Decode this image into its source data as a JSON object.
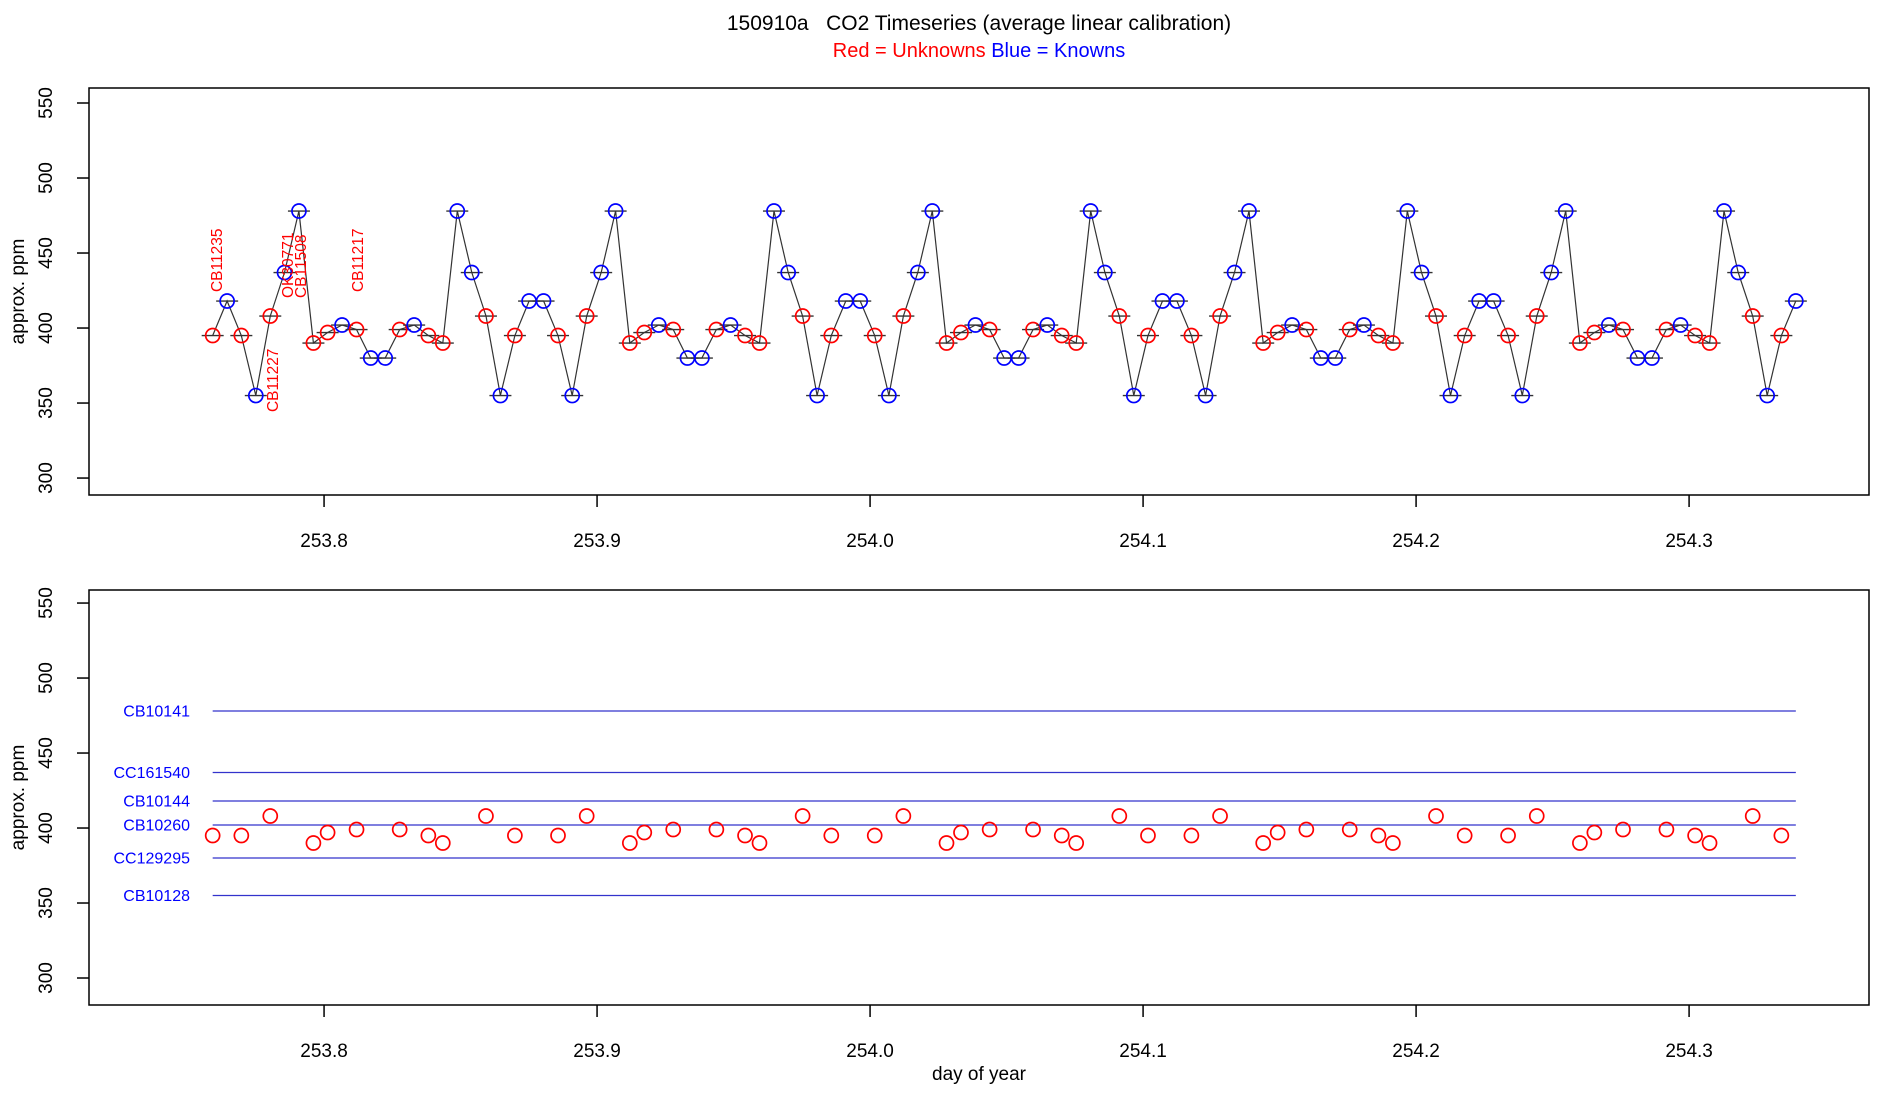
{
  "figure": {
    "title": "150910a   CO2 Timeseries (average linear calibration)",
    "subtitle_red": "Red = Unknowns",
    "subtitle_blue": "Blue = Knowns"
  },
  "colors": {
    "unknown": "#ff0000",
    "known": "#0000ff",
    "series_line": "#333333",
    "reference_line": "#3333cc",
    "axis": "#000000"
  },
  "chart_data": [
    {
      "type": "line",
      "panel": "top",
      "ylabel": "approx. ppm",
      "xlabel": "",
      "xlim": [
        253.7139,
        254.3659
      ],
      "ylim": [
        288.7,
        560.0
      ],
      "xticks": [
        {
          "v": 253.8,
          "label": "253.8"
        },
        {
          "v": 253.9,
          "label": "253.9"
        },
        {
          "v": 254.0,
          "label": "254.0"
        },
        {
          "v": 254.1,
          "label": "254.1"
        },
        {
          "v": 254.2,
          "label": "254.2"
        },
        {
          "v": 254.3,
          "label": "254.3"
        }
      ],
      "yticks": [
        {
          "v": 300,
          "label": "300"
        },
        {
          "v": 350,
          "label": "350"
        },
        {
          "v": 400,
          "label": "400"
        },
        {
          "v": 450,
          "label": "450"
        },
        {
          "v": 500,
          "label": "500"
        },
        {
          "v": 550,
          "label": "550"
        }
      ],
      "show_x_tick_labels": true,
      "point_legend": {
        "U": "unknown (red)",
        "K": "known (blue)"
      },
      "points": [
        [
          253.7592,
          395,
          "U"
        ],
        [
          253.7645,
          418,
          "K"
        ],
        [
          253.7697,
          395,
          "U"
        ],
        [
          253.775,
          355,
          "K"
        ],
        [
          253.7803,
          408,
          "U"
        ],
        [
          253.7855,
          437,
          "K"
        ],
        [
          253.7908,
          478,
          "K"
        ],
        [
          253.7961,
          390,
          "U"
        ],
        [
          253.8013,
          397,
          "U"
        ],
        [
          253.8066,
          402,
          "K"
        ],
        [
          253.8119,
          399,
          "U"
        ],
        [
          253.8171,
          380,
          "K"
        ],
        [
          253.8224,
          380,
          "K"
        ],
        [
          253.8277,
          399,
          "U"
        ],
        [
          253.833,
          402,
          "K"
        ],
        [
          253.8382,
          395,
          "U"
        ],
        [
          253.8435,
          390,
          "U"
        ],
        [
          253.8488,
          478,
          "K"
        ],
        [
          253.8541,
          437,
          "K"
        ],
        [
          253.8593,
          408,
          "U"
        ],
        [
          253.8646,
          355,
          "K"
        ],
        [
          253.8699,
          395,
          "U"
        ],
        [
          253.8751,
          418,
          "K"
        ],
        [
          253.8804,
          418,
          "K"
        ],
        [
          253.8857,
          395,
          "U"
        ],
        [
          253.8909,
          355,
          "K"
        ],
        [
          253.8962,
          408,
          "U"
        ],
        [
          253.9015,
          437,
          "K"
        ],
        [
          253.9068,
          478,
          "K"
        ],
        [
          253.912,
          390,
          "U"
        ],
        [
          253.9173,
          397,
          "U"
        ],
        [
          253.9226,
          402,
          "K"
        ],
        [
          253.9279,
          399,
          "U"
        ],
        [
          253.9331,
          380,
          "K"
        ],
        [
          253.9384,
          380,
          "K"
        ],
        [
          253.9437,
          399,
          "U"
        ],
        [
          253.9489,
          402,
          "K"
        ],
        [
          253.9542,
          395,
          "U"
        ],
        [
          253.9595,
          390,
          "U"
        ],
        [
          253.9648,
          478,
          "K"
        ],
        [
          253.97,
          437,
          "K"
        ],
        [
          253.9753,
          408,
          "U"
        ],
        [
          253.9806,
          355,
          "K"
        ],
        [
          253.9858,
          395,
          "U"
        ],
        [
          253.9911,
          418,
          "K"
        ],
        [
          253.9964,
          418,
          "K"
        ],
        [
          254.0017,
          395,
          "U"
        ],
        [
          254.0069,
          355,
          "K"
        ],
        [
          254.0122,
          408,
          "U"
        ],
        [
          254.0175,
          437,
          "K"
        ],
        [
          254.0228,
          478,
          "K"
        ],
        [
          254.028,
          390,
          "U"
        ],
        [
          254.0333,
          397,
          "U"
        ],
        [
          254.0386,
          402,
          "K"
        ],
        [
          254.0438,
          399,
          "U"
        ],
        [
          254.0491,
          380,
          "K"
        ],
        [
          254.0544,
          380,
          "K"
        ],
        [
          254.0597,
          399,
          "U"
        ],
        [
          254.0649,
          402,
          "K"
        ],
        [
          254.0702,
          395,
          "U"
        ],
        [
          254.0755,
          390,
          "U"
        ],
        [
          254.0808,
          478,
          "K"
        ],
        [
          254.086,
          437,
          "K"
        ],
        [
          254.0913,
          408,
          "U"
        ],
        [
          254.0966,
          355,
          "K"
        ],
        [
          254.1018,
          395,
          "U"
        ],
        [
          254.1071,
          418,
          "K"
        ],
        [
          254.1124,
          418,
          "K"
        ],
        [
          254.1177,
          395,
          "U"
        ],
        [
          254.1229,
          355,
          "K"
        ],
        [
          254.1282,
          408,
          "U"
        ],
        [
          254.1335,
          437,
          "K"
        ],
        [
          254.1388,
          478,
          "K"
        ],
        [
          254.144,
          390,
          "U"
        ],
        [
          254.1493,
          397,
          "U"
        ],
        [
          254.1546,
          402,
          "K"
        ],
        [
          254.1598,
          399,
          "U"
        ],
        [
          254.1651,
          380,
          "K"
        ],
        [
          254.1704,
          380,
          "K"
        ],
        [
          254.1757,
          399,
          "U"
        ],
        [
          254.1809,
          402,
          "K"
        ],
        [
          254.1862,
          395,
          "U"
        ],
        [
          254.1915,
          390,
          "U"
        ],
        [
          254.1968,
          478,
          "K"
        ],
        [
          254.202,
          437,
          "K"
        ],
        [
          254.2073,
          408,
          "U"
        ],
        [
          254.2126,
          355,
          "K"
        ],
        [
          254.2178,
          395,
          "U"
        ],
        [
          254.2231,
          418,
          "K"
        ],
        [
          254.2284,
          418,
          "K"
        ],
        [
          254.2337,
          395,
          "U"
        ],
        [
          254.2389,
          355,
          "K"
        ],
        [
          254.2442,
          408,
          "U"
        ],
        [
          254.2495,
          437,
          "K"
        ],
        [
          254.2548,
          478,
          "K"
        ],
        [
          254.26,
          390,
          "U"
        ],
        [
          254.2653,
          397,
          "U"
        ],
        [
          254.2706,
          402,
          "K"
        ],
        [
          254.2758,
          399,
          "U"
        ],
        [
          254.2811,
          380,
          "K"
        ],
        [
          254.2864,
          380,
          "K"
        ],
        [
          254.2917,
          399,
          "U"
        ],
        [
          254.2969,
          402,
          "K"
        ],
        [
          254.3022,
          395,
          "U"
        ],
        [
          254.3075,
          390,
          "U"
        ],
        [
          254.3128,
          478,
          "K"
        ],
        [
          254.318,
          437,
          "K"
        ],
        [
          254.3233,
          408,
          "U"
        ],
        [
          254.3286,
          355,
          "K"
        ],
        [
          254.3338,
          395,
          "U"
        ],
        [
          254.3391,
          418,
          "K"
        ]
      ],
      "annotations": [
        {
          "id": "CB11235",
          "day": 253.7604,
          "ppm_bottom": 424
        },
        {
          "id": "CB11227",
          "day": 253.781,
          "ppm_bottom": 344
        },
        {
          "id": "OK30771",
          "day": 253.7864,
          "ppm_bottom": 420
        },
        {
          "id": "CB11508",
          "day": 253.7912,
          "ppm_bottom": 420
        },
        {
          "id": "CB11217",
          "day": 253.8121,
          "ppm_bottom": 424
        }
      ]
    },
    {
      "type": "scatter",
      "panel": "bottom",
      "ylabel": "approx. ppm",
      "xlabel": "day of year",
      "xlim": [
        253.7139,
        254.3659
      ],
      "ylim": [
        282.0,
        558.7
      ],
      "xticks": [
        {
          "v": 253.8,
          "label": "253.8"
        },
        {
          "v": 253.9,
          "label": "253.9"
        },
        {
          "v": 254.0,
          "label": "254.0"
        },
        {
          "v": 254.1,
          "label": "254.1"
        },
        {
          "v": 254.2,
          "label": "254.2"
        },
        {
          "v": 254.3,
          "label": "254.3"
        }
      ],
      "yticks": [
        {
          "v": 300,
          "label": "300"
        },
        {
          "v": 350,
          "label": "350"
        },
        {
          "v": 400,
          "label": "400"
        },
        {
          "v": 450,
          "label": "450"
        },
        {
          "v": 500,
          "label": "500"
        },
        {
          "v": 550,
          "label": "550"
        }
      ],
      "show_x_tick_labels": true,
      "known_lines": [
        {
          "id": "CB10141",
          "ppm": 478
        },
        {
          "id": "CC161540",
          "ppm": 437
        },
        {
          "id": "CB10144",
          "ppm": 418
        },
        {
          "id": "CB10260",
          "ppm": 402
        },
        {
          "id": "CC129295",
          "ppm": 380
        },
        {
          "id": "CB10128",
          "ppm": 355
        }
      ],
      "points_source": "unknown (U) points of top panel"
    }
  ]
}
